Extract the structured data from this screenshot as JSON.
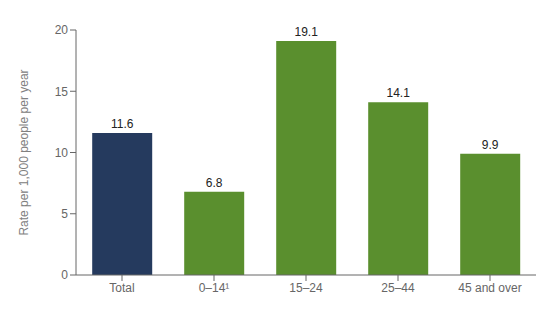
{
  "chart_data": {
    "type": "bar",
    "categories": [
      "Total",
      "0–14¹",
      "15–24",
      "25–44",
      "45 and over"
    ],
    "values": [
      11.6,
      6.8,
      19.1,
      14.1,
      9.9
    ],
    "colors": [
      "#253a5e",
      "#5a8f2e",
      "#5a8f2e",
      "#5a8f2e",
      "#5a8f2e"
    ],
    "ylabel": "Rate per 1,000 people per year",
    "ylim": [
      0,
      20
    ],
    "yticks": [
      0,
      5,
      10,
      15,
      20
    ],
    "grid": false,
    "data_labels": true
  }
}
